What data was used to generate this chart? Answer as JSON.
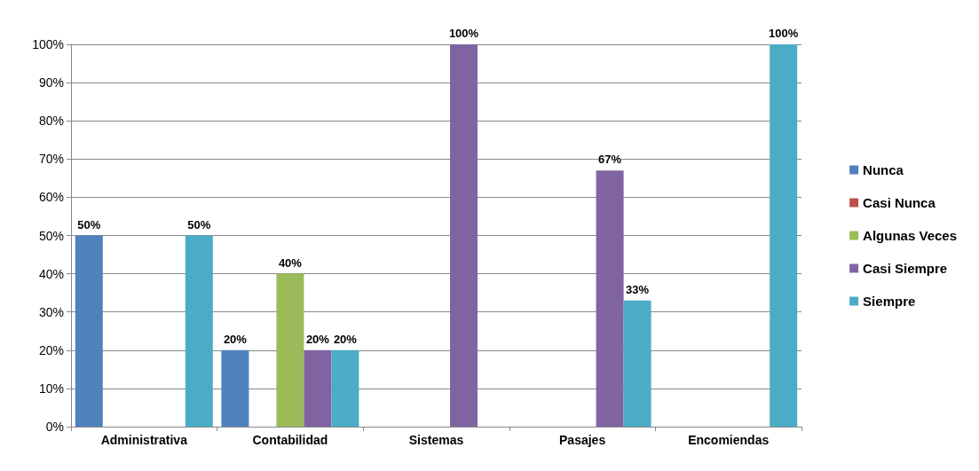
{
  "chart_data": {
    "type": "bar",
    "categories": [
      "Administrativa",
      "Contabilidad",
      "Sistemas",
      "Pasajes",
      "Encomiendas"
    ],
    "series": [
      {
        "name": "Nunca",
        "color": "#4f81bd",
        "values": [
          50,
          20,
          0,
          0,
          0
        ],
        "value_labels": [
          "50%",
          "20%",
          null,
          null,
          null
        ]
      },
      {
        "name": "Casi Nunca",
        "color": "#c0504d",
        "values": [
          0,
          0,
          0,
          0,
          0
        ],
        "value_labels": [
          null,
          null,
          null,
          null,
          null
        ]
      },
      {
        "name": "Algunas Veces",
        "color": "#9bbb59",
        "values": [
          0,
          40,
          0,
          0,
          0
        ],
        "value_labels": [
          null,
          "40%",
          null,
          null,
          null
        ]
      },
      {
        "name": "Casi Siempre",
        "color": "#8064a2",
        "values": [
          0,
          20,
          100,
          67,
          0
        ],
        "value_labels": [
          null,
          "20%",
          "100%",
          "67%",
          null
        ]
      },
      {
        "name": "Siempre",
        "color": "#4bacc6",
        "values": [
          50,
          20,
          0,
          33,
          100
        ],
        "value_labels": [
          "50%",
          "20%",
          null,
          "33%",
          "100%"
        ]
      }
    ],
    "ylim": [
      0,
      100
    ],
    "yticks": [
      {
        "value": 0,
        "label": "0%"
      },
      {
        "value": 10,
        "label": "10%"
      },
      {
        "value": 20,
        "label": "20%"
      },
      {
        "value": 30,
        "label": "30%"
      },
      {
        "value": 40,
        "label": "40%"
      },
      {
        "value": 50,
        "label": "50%"
      },
      {
        "value": 60,
        "label": "60%"
      },
      {
        "value": 70,
        "label": "70%"
      },
      {
        "value": 80,
        "label": "80%"
      },
      {
        "value": 90,
        "label": "90%"
      },
      {
        "value": 100,
        "label": "100%"
      }
    ],
    "grid": "y",
    "legend": "right"
  }
}
